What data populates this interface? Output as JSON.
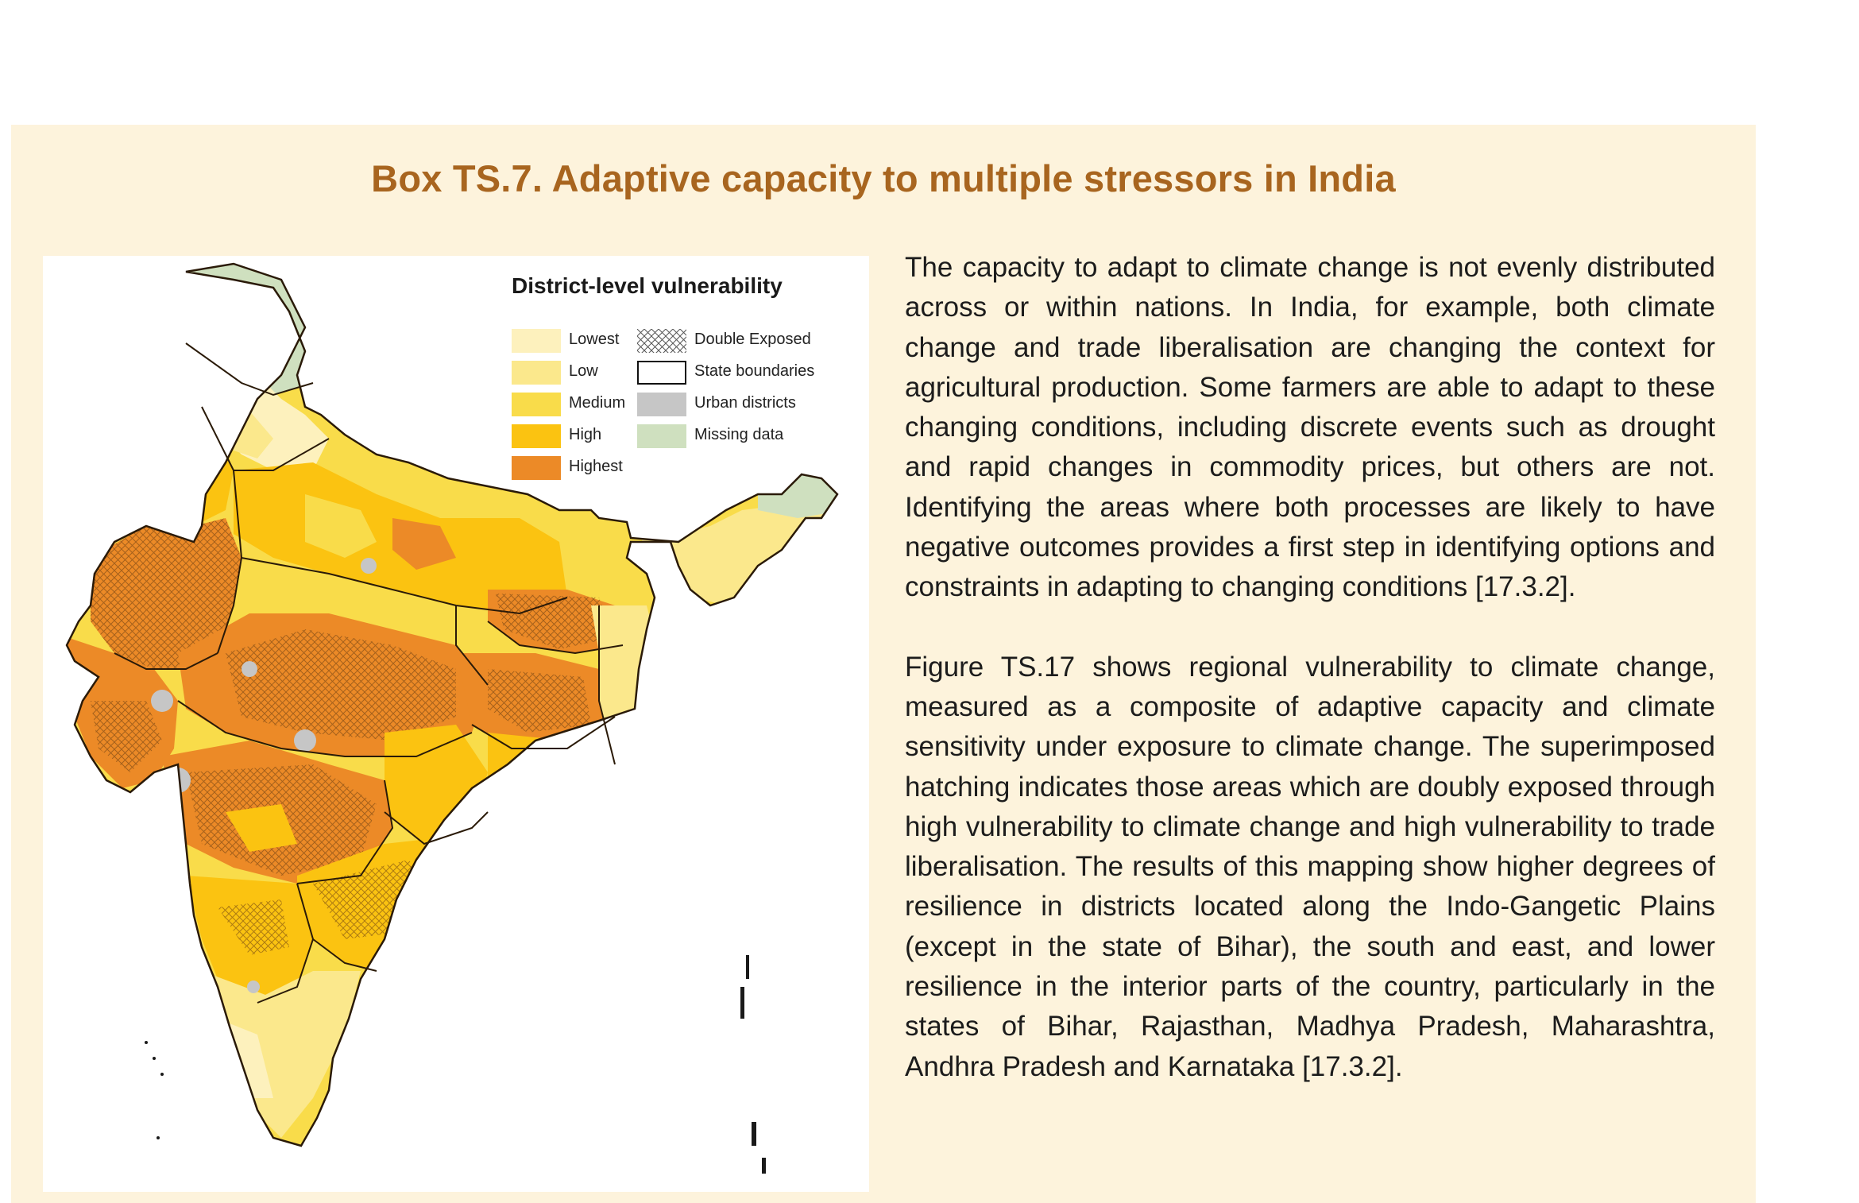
{
  "title": "Box TS.7. Adaptive capacity to multiple stressors in India",
  "colors": {
    "box_background": "#fdf3dc",
    "title": "#a8651f",
    "lowest": "#fdf1bd",
    "low": "#fbe88c",
    "medium": "#f9dc4a",
    "high": "#fbc311",
    "highest": "#ec8a27",
    "urban": "#c6c6c6",
    "missing": "#cfe0bf"
  },
  "map": {
    "legend": {
      "title": "District-level vulnerability",
      "items": [
        {
          "label": "Lowest",
          "color": "#fdf1bd"
        },
        {
          "label": "Low",
          "color": "#fbe88c"
        },
        {
          "label": "Medium",
          "color": "#f9dc4a"
        },
        {
          "label": "High",
          "color": "#fbc311"
        },
        {
          "label": "Highest",
          "color": "#ec8a27"
        }
      ],
      "overlays": [
        {
          "label": "Double Exposed",
          "style": "hatch"
        },
        {
          "label": "State boundaries",
          "style": "outline"
        },
        {
          "label": "Urban districts",
          "color": "#c6c6c6"
        },
        {
          "label": "Missing data",
          "color": "#cfe0bf"
        }
      ]
    }
  },
  "paragraphs": [
    "The capacity to adapt to climate change is not evenly distributed across or within nations. In India, for example, both climate change and trade liberalisation are changing the context for agricultural production. Some farmers are able to adapt to these changing conditions, including discrete events such as drought and rapid changes in commodity prices, but others are not. Identifying the areas where both processes are likely to have negative outcomes provides a first step in identifying options and constraints in adapting to changing conditions [17.3.2].",
    "Figure TS.17 shows regional vulnerability to climate change, measured as a composite of adaptive capacity and climate sensitivity under exposure to climate change. The superimposed hatching indicates those areas which are doubly exposed through high vulnerability to climate change and high vulnerability to trade liberalisation. The results of this mapping show higher degrees of resilience in districts located along the Indo-Gangetic Plains (except in the state of Bihar), the south and east, and lower resilience in the interior parts of the country, particularly in the states of Bihar, Rajasthan, Madhya Pradesh, Maharashtra, Andhra Pradesh and Karnataka [17.3.2]."
  ]
}
